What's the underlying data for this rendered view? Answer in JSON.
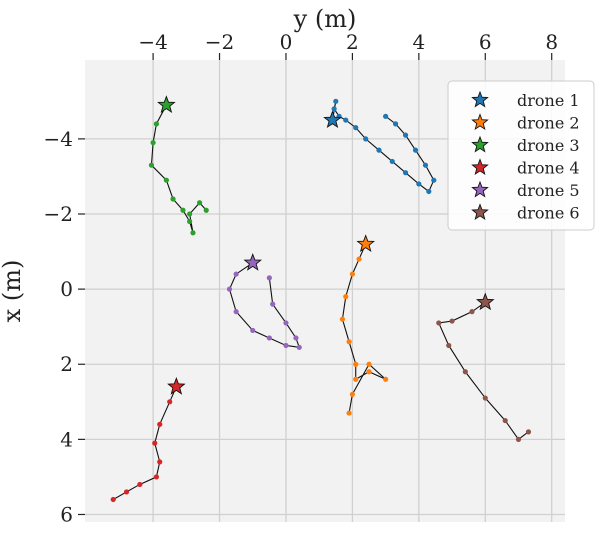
{
  "chart_data": {
    "type": "scatter",
    "xlabel": "y (m)",
    "ylabel": "x (m)",
    "x_axis_position": "top",
    "y_axis_inverted": true,
    "xlim": [
      -6.05,
      8.4
    ],
    "ylim": [
      -6.1,
      6.2
    ],
    "xticks": [
      -4,
      -2,
      0,
      2,
      4,
      6,
      8
    ],
    "yticks": [
      -4,
      -2,
      0,
      2,
      4,
      6
    ],
    "xtick_labels": [
      "−4",
      "−2",
      "0",
      "2",
      "4",
      "6",
      "8"
    ],
    "ytick_labels": [
      "−4",
      "−2",
      "0",
      "2",
      "4",
      "6"
    ],
    "grid": true,
    "background": "#f2f2f2",
    "legend_position": "top-right",
    "series": [
      {
        "name": "drone 1",
        "color": "#1f77b4",
        "start": [
          1.4,
          -4.5
        ],
        "points": [
          [
            1.5,
            -5.0
          ],
          [
            1.45,
            -4.8
          ],
          [
            1.6,
            -4.6
          ],
          [
            1.8,
            -4.5
          ],
          [
            2.1,
            -4.3
          ],
          [
            2.4,
            -4.0
          ],
          [
            2.8,
            -3.7
          ],
          [
            3.2,
            -3.4
          ],
          [
            3.6,
            -3.1
          ],
          [
            4.0,
            -2.8
          ],
          [
            4.3,
            -2.6
          ],
          [
            4.45,
            -2.9
          ],
          [
            4.2,
            -3.3
          ],
          [
            3.9,
            -3.7
          ],
          [
            3.6,
            -4.1
          ],
          [
            3.3,
            -4.4
          ],
          [
            3.0,
            -4.6
          ]
        ]
      },
      {
        "name": "drone 2",
        "color": "#ff7f0e",
        "start": [
          2.4,
          -1.2
        ],
        "points": [
          [
            2.2,
            -0.8
          ],
          [
            2.0,
            -0.4
          ],
          [
            1.8,
            0.2
          ],
          [
            1.7,
            0.8
          ],
          [
            1.9,
            1.4
          ],
          [
            2.1,
            2.0
          ],
          [
            2.1,
            2.4
          ],
          [
            2.5,
            2.2
          ],
          [
            3.0,
            2.4
          ],
          [
            2.5,
            2.0
          ],
          [
            2.0,
            2.8
          ],
          [
            1.9,
            3.3
          ]
        ]
      },
      {
        "name": "drone 3",
        "color": "#2ca02c",
        "start": [
          -3.6,
          -4.9
        ],
        "points": [
          [
            -3.9,
            -4.4
          ],
          [
            -4.0,
            -3.9
          ],
          [
            -4.05,
            -3.3
          ],
          [
            -3.6,
            -2.9
          ],
          [
            -3.4,
            -2.4
          ],
          [
            -3.1,
            -2.1
          ],
          [
            -2.9,
            -1.8
          ],
          [
            -2.8,
            -1.5
          ],
          [
            -2.9,
            -2.0
          ],
          [
            -2.6,
            -2.3
          ],
          [
            -2.4,
            -2.1
          ]
        ]
      },
      {
        "name": "drone 4",
        "color": "#d62728",
        "start": [
          -3.3,
          2.6
        ],
        "points": [
          [
            -3.5,
            3.0
          ],
          [
            -3.8,
            3.6
          ],
          [
            -3.95,
            4.1
          ],
          [
            -3.8,
            4.6
          ],
          [
            -3.9,
            5.0
          ],
          [
            -4.4,
            5.2
          ],
          [
            -4.8,
            5.4
          ],
          [
            -5.2,
            5.6
          ]
        ]
      },
      {
        "name": "drone 5",
        "color": "#9467bd",
        "start": [
          -1.0,
          -0.7
        ],
        "points": [
          [
            -1.5,
            -0.4
          ],
          [
            -1.7,
            0.0
          ],
          [
            -1.5,
            0.6
          ],
          [
            -1.0,
            1.1
          ],
          [
            -0.5,
            1.3
          ],
          [
            0.0,
            1.5
          ],
          [
            0.4,
            1.55
          ],
          [
            0.3,
            1.3
          ],
          [
            0.0,
            0.9
          ],
          [
            -0.4,
            0.4
          ],
          [
            -0.5,
            -0.3
          ]
        ]
      },
      {
        "name": "drone 6",
        "color": "#8c564b",
        "start": [
          6.0,
          0.35
        ],
        "points": [
          [
            5.6,
            0.6
          ],
          [
            5.0,
            0.85
          ],
          [
            4.6,
            0.9
          ],
          [
            4.9,
            1.5
          ],
          [
            5.4,
            2.2
          ],
          [
            6.0,
            2.9
          ],
          [
            6.6,
            3.5
          ],
          [
            7.0,
            4.0
          ],
          [
            7.3,
            3.8
          ]
        ]
      }
    ]
  }
}
